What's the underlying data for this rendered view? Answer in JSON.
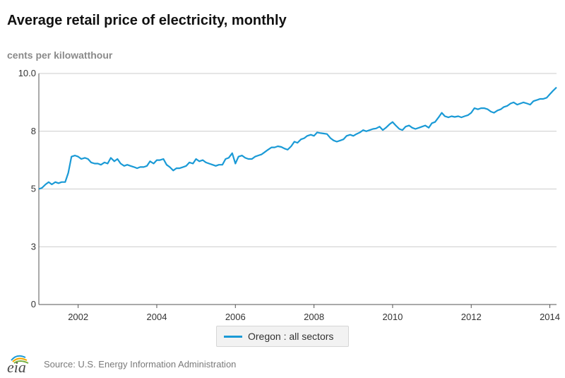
{
  "title": "Average retail price of electricity, monthly",
  "units_label": "cents per kilowatthour",
  "source": "Source: U.S. Energy Information Administration",
  "logo_text": "eia",
  "colors": {
    "series": "#1a9ad6",
    "grid": "#cccccc",
    "axis": "#555555"
  },
  "chart_data": {
    "type": "line",
    "title": "Average retail price of electricity, monthly",
    "ylabel": "cents per kilowatthour",
    "xlabel": "",
    "ylim": [
      0,
      10
    ],
    "xlim": [
      2001.0,
      2014.17
    ],
    "grid": true,
    "legend_position": "bottom-center",
    "y_ticks": [
      0,
      2.5,
      5,
      7.5,
      10
    ],
    "y_tick_labels": [
      "0",
      "3",
      "5",
      "8",
      "10.0"
    ],
    "x_ticks": [
      2002,
      2004,
      2006,
      2008,
      2010,
      2012,
      2014
    ],
    "x_tick_labels": [
      "2002",
      "2004",
      "2006",
      "2008",
      "2010",
      "2012",
      "2014"
    ],
    "series": [
      {
        "name": "Oregon : all sectors",
        "x": [
          2001.0,
          2001.08,
          2001.17,
          2001.25,
          2001.33,
          2001.42,
          2001.5,
          2001.58,
          2001.67,
          2001.75,
          2001.83,
          2001.92,
          2002.0,
          2002.08,
          2002.17,
          2002.25,
          2002.33,
          2002.42,
          2002.5,
          2002.58,
          2002.67,
          2002.75,
          2002.83,
          2002.92,
          2003.0,
          2003.08,
          2003.17,
          2003.25,
          2003.33,
          2003.42,
          2003.5,
          2003.58,
          2003.67,
          2003.75,
          2003.83,
          2003.92,
          2004.0,
          2004.08,
          2004.17,
          2004.25,
          2004.33,
          2004.42,
          2004.5,
          2004.58,
          2004.67,
          2004.75,
          2004.83,
          2004.92,
          2005.0,
          2005.08,
          2005.17,
          2005.25,
          2005.33,
          2005.42,
          2005.5,
          2005.58,
          2005.67,
          2005.75,
          2005.83,
          2005.92,
          2006.0,
          2006.08,
          2006.17,
          2006.25,
          2006.33,
          2006.42,
          2006.5,
          2006.58,
          2006.67,
          2006.75,
          2006.83,
          2006.92,
          2007.0,
          2007.08,
          2007.17,
          2007.25,
          2007.33,
          2007.42,
          2007.5,
          2007.58,
          2007.67,
          2007.75,
          2007.83,
          2007.92,
          2008.0,
          2008.08,
          2008.17,
          2008.25,
          2008.33,
          2008.42,
          2008.5,
          2008.58,
          2008.67,
          2008.75,
          2008.83,
          2008.92,
          2009.0,
          2009.08,
          2009.17,
          2009.25,
          2009.33,
          2009.42,
          2009.5,
          2009.58,
          2009.67,
          2009.75,
          2009.83,
          2009.92,
          2010.0,
          2010.08,
          2010.17,
          2010.25,
          2010.33,
          2010.42,
          2010.5,
          2010.58,
          2010.67,
          2010.75,
          2010.83,
          2010.92,
          2011.0,
          2011.08,
          2011.17,
          2011.25,
          2011.33,
          2011.42,
          2011.5,
          2011.58,
          2011.67,
          2011.75,
          2011.83,
          2011.92,
          2012.0,
          2012.08,
          2012.17,
          2012.25,
          2012.33,
          2012.42,
          2012.5,
          2012.58,
          2012.67,
          2012.75,
          2012.83,
          2012.92,
          2013.0,
          2013.08,
          2013.17,
          2013.25,
          2013.33,
          2013.42,
          2013.5,
          2013.58,
          2013.67,
          2013.75,
          2013.83,
          2013.92,
          2014.0,
          2014.08,
          2014.17
        ],
        "values": [
          5.0,
          5.05,
          5.2,
          5.3,
          5.2,
          5.3,
          5.25,
          5.3,
          5.3,
          5.7,
          6.4,
          6.45,
          6.4,
          6.3,
          6.35,
          6.3,
          6.15,
          6.1,
          6.1,
          6.05,
          6.15,
          6.1,
          6.35,
          6.2,
          6.3,
          6.1,
          6.0,
          6.05,
          6.0,
          5.95,
          5.9,
          5.95,
          5.95,
          6.0,
          6.2,
          6.1,
          6.25,
          6.25,
          6.3,
          6.05,
          5.95,
          5.8,
          5.9,
          5.9,
          5.95,
          6.0,
          6.15,
          6.1,
          6.3,
          6.2,
          6.25,
          6.15,
          6.1,
          6.05,
          6.0,
          6.05,
          6.05,
          6.3,
          6.35,
          6.55,
          6.1,
          6.4,
          6.45,
          6.35,
          6.3,
          6.3,
          6.4,
          6.45,
          6.5,
          6.6,
          6.7,
          6.8,
          6.8,
          6.85,
          6.82,
          6.75,
          6.7,
          6.85,
          7.05,
          7.0,
          7.15,
          7.2,
          7.3,
          7.35,
          7.3,
          7.45,
          7.42,
          7.4,
          7.38,
          7.2,
          7.1,
          7.05,
          7.1,
          7.15,
          7.3,
          7.35,
          7.3,
          7.38,
          7.45,
          7.55,
          7.5,
          7.55,
          7.6,
          7.62,
          7.7,
          7.55,
          7.65,
          7.8,
          7.9,
          7.75,
          7.6,
          7.55,
          7.7,
          7.75,
          7.65,
          7.6,
          7.65,
          7.7,
          7.75,
          7.65,
          7.85,
          7.9,
          8.1,
          8.3,
          8.15,
          8.1,
          8.15,
          8.12,
          8.15,
          8.1,
          8.15,
          8.2,
          8.3,
          8.5,
          8.45,
          8.5,
          8.5,
          8.45,
          8.35,
          8.3,
          8.4,
          8.45,
          8.55,
          8.6,
          8.7,
          8.75,
          8.65,
          8.7,
          8.75,
          8.7,
          8.65,
          8.8,
          8.85,
          8.9,
          8.9,
          8.95,
          9.1,
          9.25,
          9.4
        ]
      }
    ]
  }
}
